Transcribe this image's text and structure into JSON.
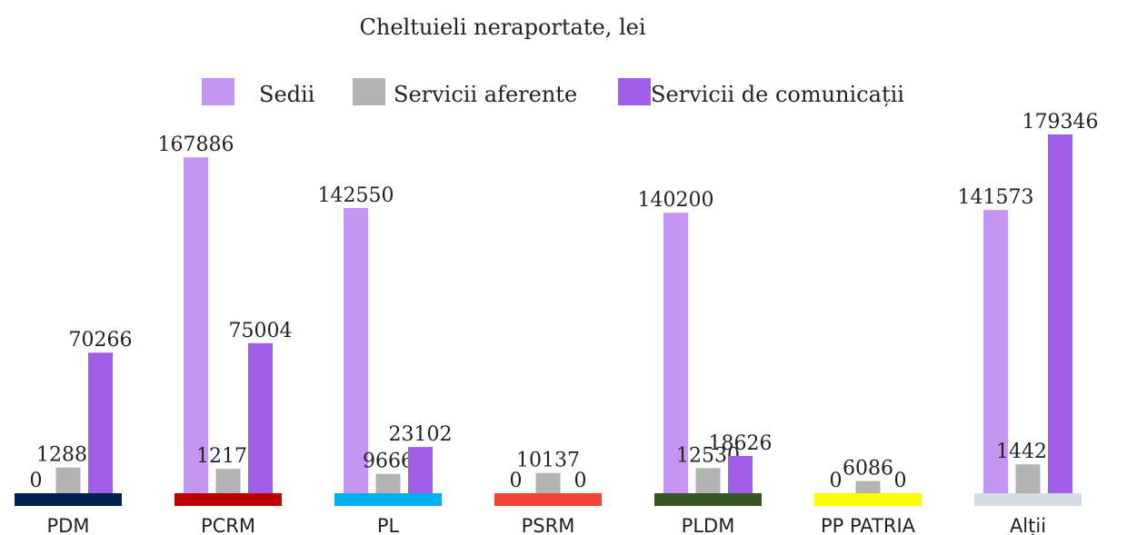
{
  "chart_data": {
    "type": "bar",
    "title": "Cheltuieli neraportate, lei",
    "categories": [
      "PDM",
      "PCRM",
      "PL",
      "PSRM",
      "PLDM",
      "PP PATRIA",
      "Alții"
    ],
    "category_colors": [
      "#002050",
      "#c00000",
      "#00b0f0",
      "#f44336",
      "#375623",
      "#ffff00",
      "#d6dce4"
    ],
    "series": [
      {
        "name": "Sedii",
        "color": "#c496f2",
        "values": [
          0,
          167886,
          142550,
          0,
          140200,
          0,
          141573
        ]
      },
      {
        "name": "Servicii aferente",
        "color": "#b3b3b3",
        "values": [
          12888,
          12172,
          9666,
          10137,
          12530,
          6086,
          14421
        ]
      },
      {
        "name": "Servicii de comunicații",
        "color": "#a25ee8",
        "values": [
          70266,
          75004,
          23102,
          0,
          18626,
          0,
          179346
        ]
      }
    ]
  }
}
